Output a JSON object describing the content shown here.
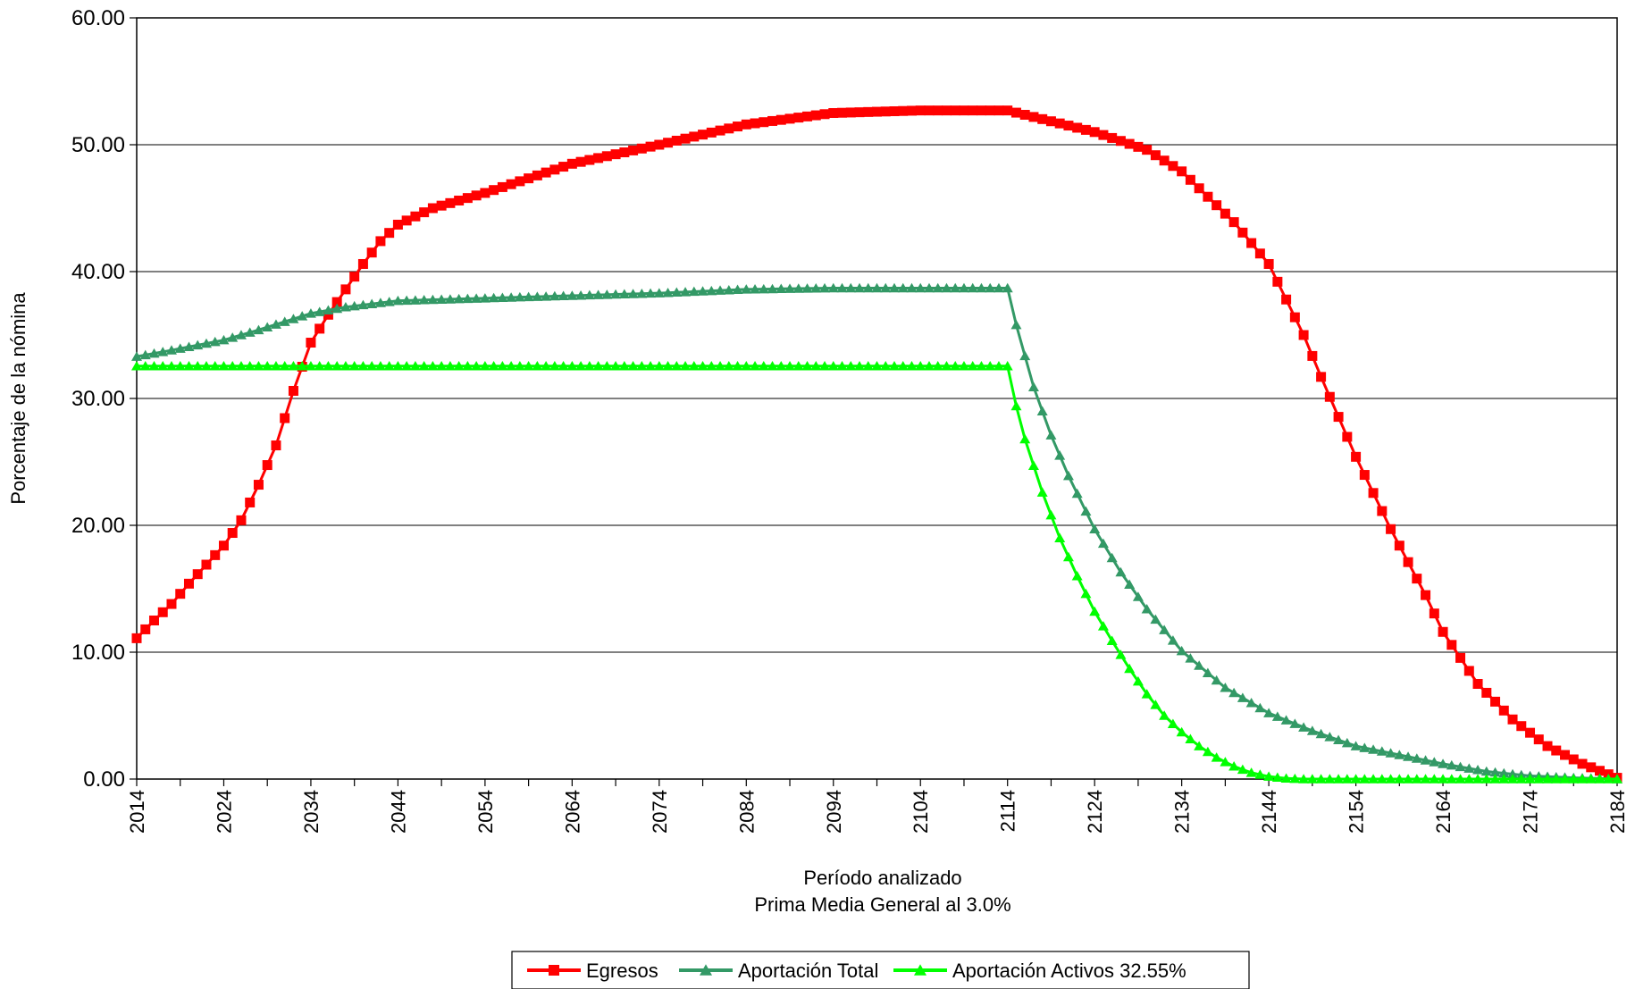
{
  "chart_data": {
    "type": "line",
    "title": "",
    "xlabel": "Período analizado",
    "xlabel2": "Prima Media General al 3.0%",
    "ylabel": "Porcentaje de la nómina",
    "xlim": [
      2014,
      2184
    ],
    "ylim": [
      0,
      60
    ],
    "grid": true,
    "legend_position": "bottom",
    "y_ticks": [
      "0.00",
      "10.00",
      "20.00",
      "30.00",
      "40.00",
      "50.00",
      "60.00"
    ],
    "x_ticks": [
      "2014",
      "2024",
      "2034",
      "2044",
      "2054",
      "2064",
      "2074",
      "2084",
      "2094",
      "2104",
      "2114",
      "2124",
      "2134",
      "2144",
      "2154",
      "2164",
      "2174",
      "2184"
    ],
    "series": [
      {
        "name": "Egresos",
        "color": "#ff0000",
        "marker": "square",
        "points": [
          [
            2014,
            11.1
          ],
          [
            2016,
            12.5
          ],
          [
            2018,
            13.8
          ],
          [
            2020,
            15.4
          ],
          [
            2022,
            16.9
          ],
          [
            2024,
            18.4
          ],
          [
            2026,
            20.4
          ],
          [
            2028,
            23.2
          ],
          [
            2030,
            26.3
          ],
          [
            2032,
            30.6
          ],
          [
            2034,
            34.4
          ],
          [
            2036,
            36.6
          ],
          [
            2038,
            38.6
          ],
          [
            2040,
            40.6
          ],
          [
            2042,
            42.4
          ],
          [
            2044,
            43.7
          ],
          [
            2048,
            45.0
          ],
          [
            2054,
            46.2
          ],
          [
            2064,
            48.5
          ],
          [
            2074,
            50.0
          ],
          [
            2084,
            51.6
          ],
          [
            2094,
            52.5
          ],
          [
            2104,
            52.7
          ],
          [
            2114,
            52.7
          ],
          [
            2124,
            51.0
          ],
          [
            2130,
            49.6
          ],
          [
            2134,
            47.9
          ],
          [
            2140,
            43.9
          ],
          [
            2144,
            40.6
          ],
          [
            2148,
            35.0
          ],
          [
            2150,
            31.7
          ],
          [
            2154,
            25.4
          ],
          [
            2158,
            19.7
          ],
          [
            2162,
            14.5
          ],
          [
            2164,
            11.6
          ],
          [
            2168,
            7.5
          ],
          [
            2172,
            4.7
          ],
          [
            2176,
            2.6
          ],
          [
            2180,
            1.2
          ],
          [
            2184,
            0.1
          ]
        ]
      },
      {
        "name": "Aportación Total",
        "color": "#339966",
        "marker": "triangle",
        "points": [
          [
            2014,
            33.3
          ],
          [
            2018,
            33.8
          ],
          [
            2024,
            34.6
          ],
          [
            2028,
            35.4
          ],
          [
            2034,
            36.7
          ],
          [
            2038,
            37.2
          ],
          [
            2044,
            37.7
          ],
          [
            2054,
            37.9
          ],
          [
            2064,
            38.1
          ],
          [
            2074,
            38.3
          ],
          [
            2084,
            38.6
          ],
          [
            2094,
            38.7
          ],
          [
            2104,
            38.7
          ],
          [
            2114,
            38.7
          ],
          [
            2115,
            35.8
          ],
          [
            2117,
            30.9
          ],
          [
            2119,
            27.1
          ],
          [
            2121,
            23.9
          ],
          [
            2124,
            19.7
          ],
          [
            2127,
            16.3
          ],
          [
            2130,
            13.4
          ],
          [
            2134,
            10.1
          ],
          [
            2139,
            7.2
          ],
          [
            2144,
            5.2
          ],
          [
            2149,
            3.8
          ],
          [
            2154,
            2.6
          ],
          [
            2159,
            1.9
          ],
          [
            2164,
            1.2
          ],
          [
            2169,
            0.6
          ],
          [
            2174,
            0.25
          ],
          [
            2179,
            0.1
          ],
          [
            2184,
            0.0
          ]
        ]
      },
      {
        "name": "Aportación Activos 32.55%",
        "color": "#00ff00",
        "marker": "triangle",
        "points": [
          [
            2014,
            32.55
          ],
          [
            2034,
            32.55
          ],
          [
            2054,
            32.55
          ],
          [
            2074,
            32.55
          ],
          [
            2094,
            32.55
          ],
          [
            2114,
            32.55
          ],
          [
            2115,
            29.4
          ],
          [
            2116,
            26.8
          ],
          [
            2118,
            22.6
          ],
          [
            2120,
            19.0
          ],
          [
            2122,
            16.0
          ],
          [
            2124,
            13.2
          ],
          [
            2126,
            10.9
          ],
          [
            2128,
            8.7
          ],
          [
            2130,
            6.7
          ],
          [
            2132,
            5.0
          ],
          [
            2134,
            3.7
          ],
          [
            2136,
            2.6
          ],
          [
            2138,
            1.7
          ],
          [
            2140,
            1.0
          ],
          [
            2142,
            0.5
          ],
          [
            2144,
            0.2
          ],
          [
            2146,
            0.05
          ],
          [
            2148,
            0.0
          ],
          [
            2154,
            0.0
          ],
          [
            2164,
            0.0
          ],
          [
            2174,
            0.0
          ],
          [
            2184,
            0.0
          ]
        ]
      }
    ]
  }
}
